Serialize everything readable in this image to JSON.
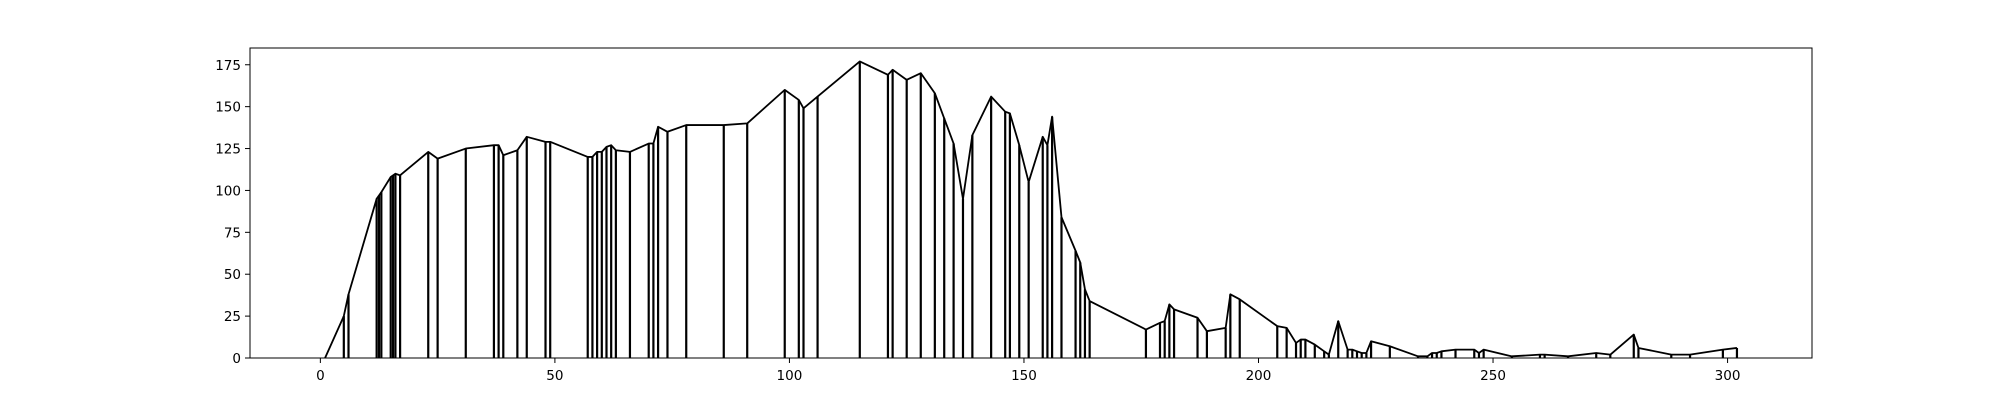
{
  "chart_data": {
    "type": "line",
    "title": "",
    "xlabel": "",
    "ylabel": "",
    "xlim": [
      -15,
      318
    ],
    "ylim": [
      0,
      185
    ],
    "xticks": [
      0,
      50,
      100,
      150,
      200,
      250,
      300
    ],
    "xtick_labels": [
      "0",
      "50",
      "100",
      "150",
      "200",
      "250",
      "300"
    ],
    "yticks": [
      0,
      25,
      50,
      75,
      100,
      125,
      150,
      175
    ],
    "ytick_labels": [
      "0",
      "25",
      "50",
      "75",
      "100",
      "125",
      "150",
      "175"
    ],
    "grid": false,
    "legend": false,
    "style": {
      "line_color": "#000000",
      "stems": true
    },
    "series": [
      {
        "points": [
          [
            1,
            0
          ],
          [
            5,
            25
          ],
          [
            6,
            38
          ],
          [
            12,
            95
          ],
          [
            12.5,
            97
          ],
          [
            13,
            99
          ],
          [
            15,
            108
          ],
          [
            15.5,
            109
          ],
          [
            16,
            110
          ],
          [
            17,
            109
          ],
          [
            23,
            123
          ],
          [
            25,
            119
          ],
          [
            31,
            125
          ],
          [
            37,
            127
          ],
          [
            38,
            127
          ],
          [
            39,
            121
          ],
          [
            42,
            124
          ],
          [
            44,
            132
          ],
          [
            48,
            129
          ],
          [
            49,
            129
          ],
          [
            57,
            120
          ],
          [
            58,
            120
          ],
          [
            59,
            123
          ],
          [
            60,
            123
          ],
          [
            61,
            126
          ],
          [
            62,
            127
          ],
          [
            63,
            124
          ],
          [
            66,
            123
          ],
          [
            70,
            128
          ],
          [
            71,
            128
          ],
          [
            72,
            138
          ],
          [
            74,
            135
          ],
          [
            78,
            139
          ],
          [
            86,
            139
          ],
          [
            91,
            140
          ],
          [
            99,
            160
          ],
          [
            102,
            154
          ],
          [
            103,
            149
          ],
          [
            106,
            156
          ],
          [
            115,
            177
          ],
          [
            121,
            169
          ],
          [
            122,
            172
          ],
          [
            125,
            166
          ],
          [
            128,
            170
          ],
          [
            131,
            158
          ],
          [
            133,
            143
          ],
          [
            135,
            128
          ],
          [
            137,
            95
          ],
          [
            139,
            133
          ],
          [
            143,
            156
          ],
          [
            146,
            147
          ],
          [
            147,
            146
          ],
          [
            149,
            127
          ],
          [
            151,
            105
          ],
          [
            154,
            132
          ],
          [
            155,
            127
          ],
          [
            156,
            144
          ],
          [
            158,
            84
          ],
          [
            161,
            64
          ],
          [
            162,
            57
          ],
          [
            163,
            41
          ],
          [
            164,
            34
          ],
          [
            176,
            17
          ],
          [
            179,
            21
          ],
          [
            180,
            22
          ],
          [
            181,
            32
          ],
          [
            182,
            29
          ],
          [
            187,
            24
          ],
          [
            189,
            16
          ],
          [
            193,
            18
          ],
          [
            194,
            38
          ],
          [
            196,
            35
          ],
          [
            204,
            19
          ],
          [
            206,
            18
          ],
          [
            208,
            9
          ],
          [
            209,
            11
          ],
          [
            210,
            11
          ],
          [
            212,
            8
          ],
          [
            214,
            4
          ],
          [
            215,
            2
          ],
          [
            217,
            22
          ],
          [
            219,
            5
          ],
          [
            220,
            5
          ],
          [
            221,
            4
          ],
          [
            222,
            3
          ],
          [
            223,
            3
          ],
          [
            224,
            10
          ],
          [
            228,
            7
          ],
          [
            234,
            1
          ],
          [
            236,
            1
          ],
          [
            237,
            3
          ],
          [
            238,
            3
          ],
          [
            239,
            4
          ],
          [
            242,
            5
          ],
          [
            246,
            5
          ],
          [
            247,
            3
          ],
          [
            248,
            5
          ],
          [
            254,
            1
          ],
          [
            260,
            2
          ],
          [
            261,
            2
          ],
          [
            266,
            1
          ],
          [
            272,
            3
          ],
          [
            275,
            2
          ],
          [
            280,
            14
          ],
          [
            281,
            6
          ],
          [
            288,
            2
          ],
          [
            292,
            2
          ],
          [
            299,
            5
          ],
          [
            302,
            6
          ]
        ]
      }
    ]
  }
}
